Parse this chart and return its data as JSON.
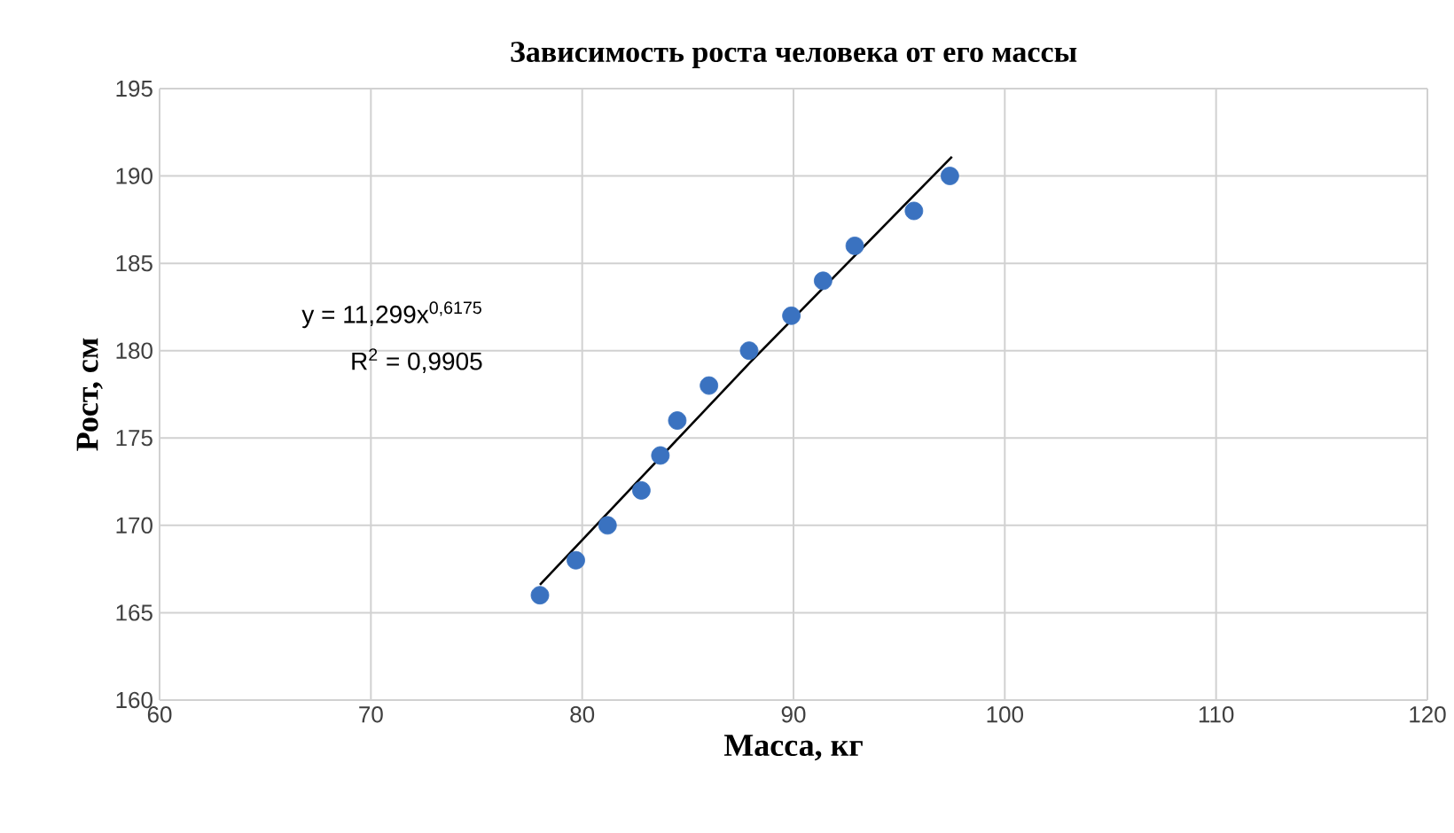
{
  "chart_data": {
    "type": "scatter",
    "title": "Зависимость роста человека от его массы",
    "xlabel": "Масса, кг",
    "ylabel": "Рост, см",
    "xlim": [
      60,
      120
    ],
    "xticks": [
      60,
      70,
      80,
      90,
      100,
      110,
      120
    ],
    "ylim": [
      160,
      195
    ],
    "yticks": [
      160,
      165,
      170,
      175,
      180,
      185,
      190,
      195
    ],
    "grid": true,
    "marker": "circle",
    "series": [
      {
        "color": "#3a72c0",
        "x": [
          78,
          79.7,
          81.2,
          82.8,
          83.7,
          84.5,
          86.0,
          87.9,
          89.9,
          91.4,
          92.9,
          95.7,
          97.4
        ],
        "values": [
          166,
          168,
          170,
          172,
          174,
          176,
          178,
          180,
          182,
          184,
          186,
          188,
          190
        ]
      },
      {
        "type": "line",
        "color": "#000000",
        "x": [
          78,
          88,
          97.5
        ],
        "values": [
          166.6,
          179.4,
          191.1
        ],
        "marker": "none",
        "line_style": "solid"
      }
    ],
    "annotations": [
      "y = 11,299x$^{0,6175}$",
      "R$^{2}$ = 0,9905"
    ]
  }
}
